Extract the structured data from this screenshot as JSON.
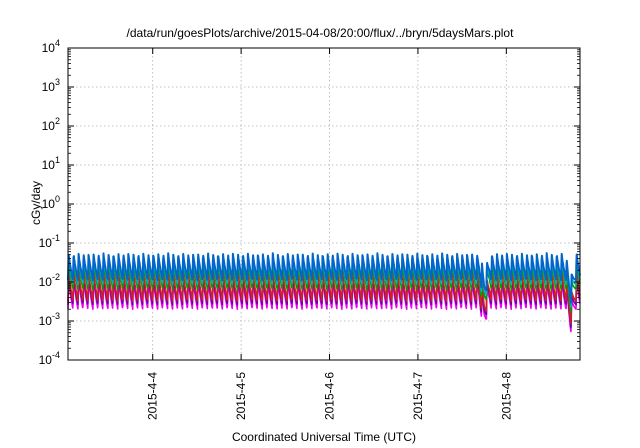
{
  "chart_data": {
    "type": "line",
    "title": "/data/run/goesPlots/archive/2015-04-08/20:00/flux/../bryn/5daysMars.plot",
    "xlabel": "Coordinated Universal Time (UTC)",
    "ylabel": "cGy/day",
    "y_scale": "log",
    "ylim": [
      0.0001,
      10000
    ],
    "y_ticks": [
      {
        "value": 0.0001,
        "base": "10",
        "exp": "-4"
      },
      {
        "value": 0.001,
        "base": "10",
        "exp": "-3"
      },
      {
        "value": 0.01,
        "base": "10",
        "exp": "-2"
      },
      {
        "value": 0.1,
        "base": "10",
        "exp": "-1"
      },
      {
        "value": 1,
        "base": "10",
        "exp": "0"
      },
      {
        "value": 10,
        "base": "10",
        "exp": "1"
      },
      {
        "value": 100,
        "base": "10",
        "exp": "2"
      },
      {
        "value": 1000,
        "base": "10",
        "exp": "3"
      },
      {
        "value": 10000,
        "base": "10",
        "exp": "4"
      }
    ],
    "x_range": [
      "2015-04-03 01:00",
      "2015-04-08 20:00"
    ],
    "x_ticks": [
      "2015-4-4",
      "2015-4-5",
      "2015-4-6",
      "2015-4-7",
      "2015-4-8"
    ],
    "grid": true,
    "legend": "none",
    "pattern": {
      "description": "sawtooth, one cycle per approx 1.35 h (~20 per day)",
      "cycles_per_day": 17.75,
      "dips": [
        {
          "at": "2015-04-07 18:00",
          "factor": 0.35
        },
        {
          "at": "2015-04-08 17:30",
          "factor": 0.25
        }
      ]
    },
    "series": [
      {
        "color": "#0066cc",
        "peak": 0.055,
        "trough": 0.011
      },
      {
        "color": "#00b4b4",
        "peak": 0.045,
        "trough": 0.0085
      },
      {
        "color": "#009e00",
        "peak": 0.035,
        "trough": 0.0065
      },
      {
        "color": "#cc2222",
        "peak": 0.02,
        "trough": 0.0032
      },
      {
        "color": "#6a00aa",
        "peak": 0.016,
        "trough": 0.0026
      },
      {
        "color": "#ee00ee",
        "peak": 0.012,
        "trough": 0.002
      }
    ]
  }
}
